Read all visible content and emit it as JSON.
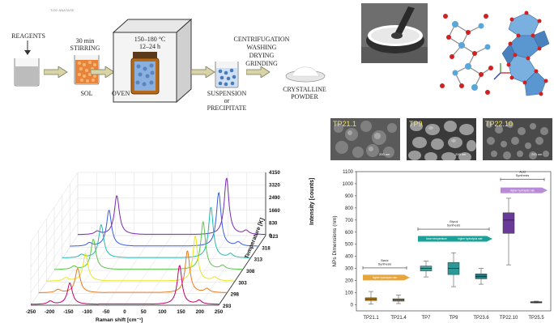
{
  "scheme": {
    "heading": "TiO2 ANATASE",
    "reagents": "REAGENTS",
    "stirring": [
      "30 min",
      "STIRRING"
    ],
    "sol": "SOL",
    "oven_cond": [
      "150–180 °C",
      "12–24 h"
    ],
    "oven": "OVEN",
    "suspension": [
      "SUSPENSION",
      "or",
      "PRECIPITATE"
    ],
    "steps": [
      "CENTRIFUGATION",
      "WASHING",
      "DRYING",
      "GRINDING"
    ],
    "powder": [
      "CRYSTALLINE",
      "POWDER"
    ]
  },
  "sem": {
    "panels": [
      "TP21.1",
      "TP9",
      "TP22.10"
    ],
    "scale": [
      "200 nm",
      "200 nm",
      "200 nm"
    ]
  },
  "raman": {
    "xlabel": "Raman shift [cm⁻¹]",
    "ylabel": "Temperature [K]",
    "zlabel": "Intensity [counts]",
    "xticks": [
      "-250",
      "-200",
      "-150",
      "-100",
      "-50",
      "0",
      "50",
      "100",
      "150",
      "200",
      "250"
    ],
    "yticks": [
      "293",
      "298",
      "303",
      "308",
      "313",
      "318",
      "323"
    ],
    "zticks": [
      "0",
      "830",
      "1660",
      "2490",
      "3320",
      "4150"
    ],
    "colors": [
      "#c00070",
      "#e67a1e",
      "#e8e620",
      "#58c84a",
      "#24b8b0",
      "#3a5de0",
      "#7a2ab0"
    ]
  },
  "chart_data": {
    "type": "box",
    "xlabel": "",
    "ylabel": "NPs Dimensions (nm)",
    "ylim": [
      -50,
      1100
    ],
    "yticks": [
      0,
      100,
      200,
      300,
      400,
      500,
      600,
      700,
      800,
      900,
      1000,
      1100
    ],
    "categories": [
      "TP21.1",
      "TP21.4",
      "TP7",
      "TP9",
      "TP23.6",
      "TP22.10",
      "TP25.5"
    ],
    "boxes": [
      {
        "min": 5,
        "q1": 35,
        "median": 47,
        "q3": 58,
        "max": 110,
        "color": "#b8861e"
      },
      {
        "min": 10,
        "q1": 30,
        "median": 40,
        "q3": 50,
        "max": 80,
        "color": "#b8861e"
      },
      {
        "min": 230,
        "q1": 280,
        "median": 300,
        "q3": 320,
        "max": 360,
        "color": "#3aa8a0"
      },
      {
        "min": 150,
        "q1": 250,
        "median": 300,
        "q3": 350,
        "max": 430,
        "color": "#2a9a98"
      },
      {
        "min": 170,
        "q1": 215,
        "median": 235,
        "q3": 255,
        "max": 300,
        "color": "#1a7e86"
      },
      {
        "min": 330,
        "q1": 590,
        "median": 700,
        "q3": 760,
        "max": 880,
        "color": "#6a3a98"
      },
      {
        "min": 15,
        "q1": 20,
        "median": 23,
        "q3": 26,
        "max": 30,
        "color": "#555555"
      }
    ],
    "groups": [
      {
        "title": [
          "Basic",
          "Synthesis"
        ],
        "from": 0,
        "to": 1,
        "y": 305,
        "arrow": {
          "label": "higher hydrolysis rate",
          "y": 225,
          "color": "#e8a63a"
        }
      },
      {
        "title": [
          "Glycol",
          "Synthesis"
        ],
        "from": 2,
        "to": 4,
        "y": 625,
        "arrow": {
          "label": "lower temperature",
          "label2": "higher hydrolysis rate",
          "y": 545,
          "color": "#1aa29a"
        }
      },
      {
        "title": [
          "Acid",
          "Synthesis"
        ],
        "from": 5,
        "to": 6,
        "y": 1035,
        "arrow": {
          "label": "higher hydrolysis rate",
          "y": 945,
          "color": "#b88ad8"
        }
      }
    ]
  }
}
